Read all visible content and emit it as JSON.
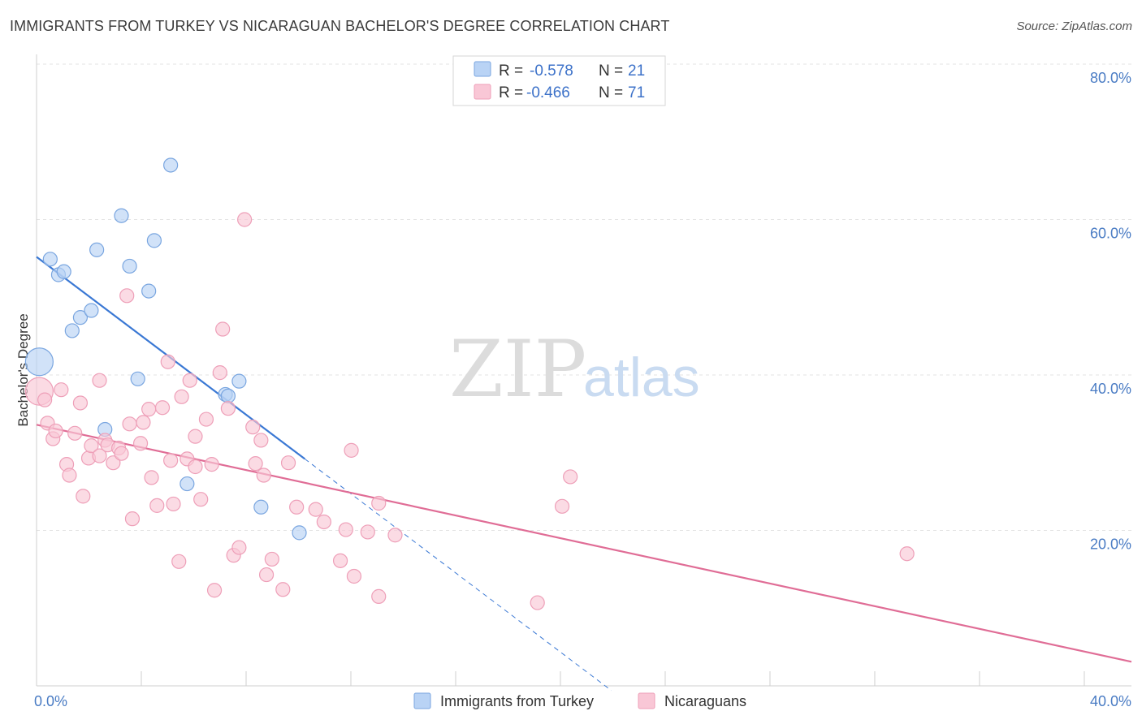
{
  "title": "IMMIGRANTS FROM TURKEY VS NICARAGUAN BACHELOR'S DEGREE CORRELATION CHART",
  "source": "Source: ZipAtlas.com",
  "watermark": {
    "zip": "ZIP",
    "atlas": "atlas"
  },
  "legend": {
    "r_label": "R = ",
    "n_label": "N = ",
    "items": [
      {
        "r": "-0.578",
        "n": "21",
        "fill": "#b9d3f5",
        "stroke": "#7aa6e0"
      },
      {
        "r": "-0.466",
        "n": "71",
        "fill": "#f9c7d6",
        "stroke": "#ee9fb8"
      }
    ]
  },
  "bottom_legend": [
    {
      "label": "Immigrants from Turkey",
      "fill": "#b9d3f5",
      "stroke": "#7aa6e0"
    },
    {
      "label": "Nicaraguans",
      "fill": "#f9c7d6",
      "stroke": "#ee9fb8"
    }
  ],
  "chart_data": {
    "type": "scatter",
    "xlabel": "",
    "ylabel": "Bachelor's Degree",
    "xlim": [
      0,
      40
    ],
    "ylim": [
      0,
      80
    ],
    "x_tick_labels": [
      {
        "value": 0,
        "label": "0.0%"
      },
      {
        "value": 40,
        "label": "40.0%"
      }
    ],
    "y_tick_labels": [
      {
        "value": 20,
        "label": "20.0%"
      },
      {
        "value": 40,
        "label": "40.0%"
      },
      {
        "value": 60,
        "label": "60.0%"
      },
      {
        "value": 80,
        "label": "80.0%"
      }
    ],
    "grid": true,
    "series": [
      {
        "color": "#3a78d4",
        "fill": "#b9d3f5",
        "stroke": "#7aa6e0",
        "points": [
          [
            0.1,
            41.7,
            1
          ],
          [
            0.5,
            54.9,
            0
          ],
          [
            0.8,
            52.9,
            0
          ],
          [
            1.0,
            53.3,
            0
          ],
          [
            1.3,
            45.7,
            0
          ],
          [
            1.6,
            47.4,
            0
          ],
          [
            2.0,
            48.3,
            0
          ],
          [
            2.2,
            56.1,
            0
          ],
          [
            2.5,
            33.0,
            0
          ],
          [
            3.1,
            60.5,
            0
          ],
          [
            3.4,
            54.0,
            0
          ],
          [
            3.7,
            39.5,
            0
          ],
          [
            4.1,
            50.8,
            0
          ],
          [
            4.3,
            57.3,
            0
          ],
          [
            4.9,
            67.0,
            0
          ],
          [
            5.5,
            26.0,
            0
          ],
          [
            6.9,
            37.5,
            0
          ],
          [
            7.4,
            39.2,
            0
          ],
          [
            8.2,
            23.0,
            0
          ],
          [
            9.6,
            19.7,
            0
          ],
          [
            7.0,
            37.3,
            0
          ]
        ],
        "trend": {
          "x0": 0.0,
          "y0": 55.2,
          "x1": 9.8,
          "y1": 29.2,
          "dash_x1": 21.0,
          "dash_y1": -0.6
        }
      },
      {
        "color": "#e06d96",
        "fill": "#f9c7d6",
        "stroke": "#ee9fb8",
        "points": [
          [
            0.1,
            37.9,
            1
          ],
          [
            0.3,
            36.8,
            0
          ],
          [
            0.4,
            33.8,
            0
          ],
          [
            0.6,
            31.8,
            0
          ],
          [
            0.7,
            32.8,
            0
          ],
          [
            0.9,
            38.1,
            0
          ],
          [
            1.1,
            28.5,
            0
          ],
          [
            1.2,
            27.1,
            0
          ],
          [
            1.4,
            32.5,
            0
          ],
          [
            1.6,
            36.4,
            0
          ],
          [
            1.7,
            24.4,
            0
          ],
          [
            1.9,
            29.3,
            0
          ],
          [
            2.0,
            30.9,
            0
          ],
          [
            2.3,
            29.6,
            0
          ],
          [
            2.3,
            39.3,
            0
          ],
          [
            2.5,
            31.6,
            0
          ],
          [
            2.6,
            31.0,
            0
          ],
          [
            2.8,
            28.7,
            0
          ],
          [
            3.0,
            30.6,
            0
          ],
          [
            3.1,
            29.9,
            0
          ],
          [
            3.3,
            50.2,
            0
          ],
          [
            3.4,
            33.7,
            0
          ],
          [
            3.5,
            21.5,
            0
          ],
          [
            3.8,
            31.2,
            0
          ],
          [
            3.9,
            33.9,
            0
          ],
          [
            4.1,
            35.6,
            0
          ],
          [
            4.2,
            26.8,
            0
          ],
          [
            4.4,
            23.2,
            0
          ],
          [
            4.6,
            35.8,
            0
          ],
          [
            4.8,
            41.7,
            0
          ],
          [
            4.9,
            29.0,
            0
          ],
          [
            5.0,
            23.4,
            0
          ],
          [
            5.2,
            16.0,
            0
          ],
          [
            5.3,
            37.2,
            0
          ],
          [
            5.5,
            29.2,
            0
          ],
          [
            5.6,
            39.3,
            0
          ],
          [
            5.8,
            28.2,
            0
          ],
          [
            5.8,
            32.1,
            0
          ],
          [
            6.0,
            24.0,
            0
          ],
          [
            6.2,
            34.3,
            0
          ],
          [
            6.4,
            28.5,
            0
          ],
          [
            6.5,
            12.3,
            0
          ],
          [
            6.7,
            40.3,
            0
          ],
          [
            6.8,
            45.9,
            0
          ],
          [
            7.0,
            35.7,
            0
          ],
          [
            7.2,
            16.8,
            0
          ],
          [
            7.4,
            17.8,
            0
          ],
          [
            7.6,
            60.0,
            0
          ],
          [
            7.9,
            33.3,
            0
          ],
          [
            8.0,
            28.6,
            0
          ],
          [
            8.2,
            31.6,
            0
          ],
          [
            8.3,
            27.1,
            0
          ],
          [
            8.4,
            14.3,
            0
          ],
          [
            8.6,
            16.3,
            0
          ],
          [
            9.0,
            12.4,
            0
          ],
          [
            9.2,
            28.7,
            0
          ],
          [
            9.5,
            23.0,
            0
          ],
          [
            10.2,
            22.7,
            0
          ],
          [
            10.5,
            21.1,
            0
          ],
          [
            11.1,
            16.1,
            0
          ],
          [
            11.3,
            20.1,
            0
          ],
          [
            11.5,
            30.3,
            0
          ],
          [
            11.6,
            14.1,
            0
          ],
          [
            12.1,
            19.8,
            0
          ],
          [
            12.5,
            11.5,
            0
          ],
          [
            12.5,
            23.5,
            0
          ],
          [
            13.1,
            19.4,
            0
          ],
          [
            18.3,
            10.7,
            0
          ],
          [
            19.2,
            23.1,
            0
          ],
          [
            19.5,
            26.9,
            0
          ],
          [
            31.8,
            17.0,
            0
          ]
        ],
        "trend": {
          "x0": 0.0,
          "y0": 33.6,
          "x1": 40.0,
          "y1": 3.1
        }
      }
    ]
  }
}
